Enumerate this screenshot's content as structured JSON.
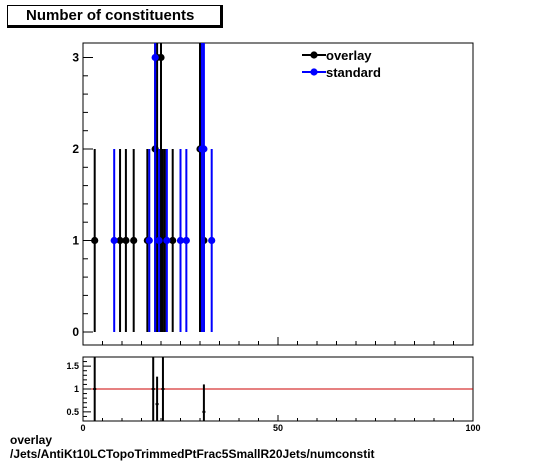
{
  "title": "Number of constituents",
  "legend": [
    {
      "label": "overlay",
      "color": "#000000"
    },
    {
      "label": "standard",
      "color": "#0000ff"
    }
  ],
  "caption": {
    "line1": "overlay",
    "line2": "/Jets/AntiKt10LCTopoTrimmedPtFrac5SmallR20Jets/numconstit"
  },
  "chart_data": [
    {
      "type": "scatter",
      "panel": "main",
      "xlim": [
        0,
        100
      ],
      "ylim": [
        0,
        3.15
      ],
      "yticks": [
        "0",
        "1",
        "2",
        "3"
      ],
      "legend_position": "top-right",
      "series": [
        {
          "name": "overlay",
          "color": "#000000",
          "x": [
            3,
            9.5,
            11,
            13,
            16.5,
            18.5,
            19,
            20,
            20.5,
            21,
            23,
            30,
            31
          ],
          "y": [
            1,
            1,
            1,
            1,
            1,
            2,
            3,
            3,
            1,
            1,
            1,
            2,
            1
          ],
          "yerr": [
            1,
            1,
            1,
            1,
            1,
            1.41,
            1.73,
            1.73,
            1,
            1,
            1,
            1.41,
            1
          ]
        },
        {
          "name": "standard",
          "color": "#0000ff",
          "x": [
            8,
            17,
            18.5,
            19.5,
            21.5,
            25,
            26.5,
            30.5,
            31,
            33
          ],
          "y": [
            1,
            1,
            3,
            1,
            1,
            1,
            1,
            2,
            2,
            1
          ],
          "yerr": [
            1,
            1,
            1.73,
            1,
            1,
            1,
            1,
            1.41,
            1.41,
            1
          ]
        }
      ]
    },
    {
      "type": "scatter",
      "panel": "ratio",
      "xlim": [
        0,
        100
      ],
      "ylim": [
        0.3,
        1.7
      ],
      "xticks": [
        "0",
        "50",
        "100"
      ],
      "yticks": [
        "0.5",
        "1",
        "1.5"
      ],
      "reference_line": 1,
      "reference_color": "#cc0000",
      "series": [
        {
          "name": "",
          "color": "#000000",
          "x": [
            3,
            18,
            19,
            20.5,
            31
          ],
          "y": [
            1,
            1,
            0.67,
            1,
            0.5
          ],
          "yerr": [
            1.4,
            1.4,
            0.6,
            1.4,
            0.6
          ]
        }
      ]
    }
  ]
}
